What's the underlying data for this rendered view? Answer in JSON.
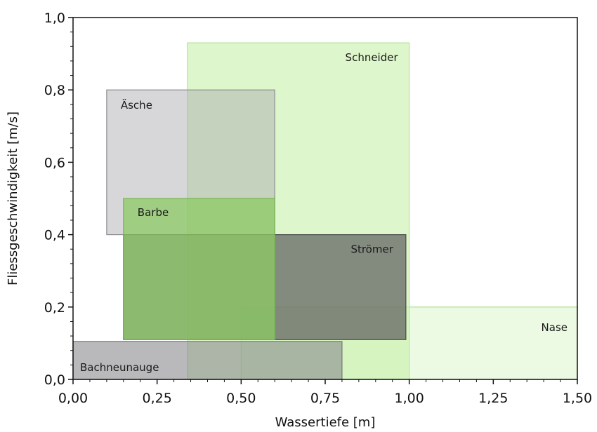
{
  "chart_data": {
    "type": "range-rectangles",
    "xlabel": "Wassertiefe [m]",
    "ylabel": "Fliessgeschwindigkeit [m/s]",
    "xlim": [
      0,
      1.5
    ],
    "ylim": [
      0,
      1.0
    ],
    "x_ticks": [
      "0,00",
      "0,25",
      "0,50",
      "0,75",
      "1,00",
      "1,25",
      "1,50"
    ],
    "y_ticks": [
      "0,0",
      "0,2",
      "0,4",
      "0,6",
      "0,8",
      "1,0"
    ],
    "grid": false,
    "series": [
      {
        "name": "Nase",
        "x_min": 0.5,
        "x_max": 1.5,
        "y_min": 0.0,
        "y_max": 0.2,
        "color": "#c8f0b0",
        "opacity": 0.35,
        "stroke": "#a8e08c"
      },
      {
        "name": "Schneider",
        "x_min": 0.34,
        "x_max": 1.0,
        "y_min": 0.0,
        "y_max": 0.93,
        "color": "#c8f0a8",
        "opacity": 0.6,
        "stroke": "#b6e69a"
      },
      {
        "name": "Äsche",
        "x_min": 0.1,
        "x_max": 0.6,
        "y_min": 0.4,
        "y_max": 0.8,
        "color": "#a6a6ad",
        "opacity": 0.45,
        "stroke": "#8c8c92"
      },
      {
        "name": "Strömer",
        "x_min": 0.15,
        "x_max": 0.99,
        "y_min": 0.11,
        "y_max": 0.4,
        "color": "#5c5c5c",
        "opacity": 0.7,
        "stroke": "#4a4a4a"
      },
      {
        "name": "Barbe",
        "x_min": 0.15,
        "x_max": 0.6,
        "y_min": 0.11,
        "y_max": 0.5,
        "color": "#8cca64",
        "opacity": 0.75,
        "stroke": "#78b452"
      },
      {
        "name": "Bachneunauge",
        "x_min": 0.0,
        "x_max": 0.8,
        "y_min": 0.0,
        "y_max": 0.105,
        "color": "#8a8a8f",
        "opacity": 0.6,
        "stroke": "#77777c"
      }
    ]
  }
}
